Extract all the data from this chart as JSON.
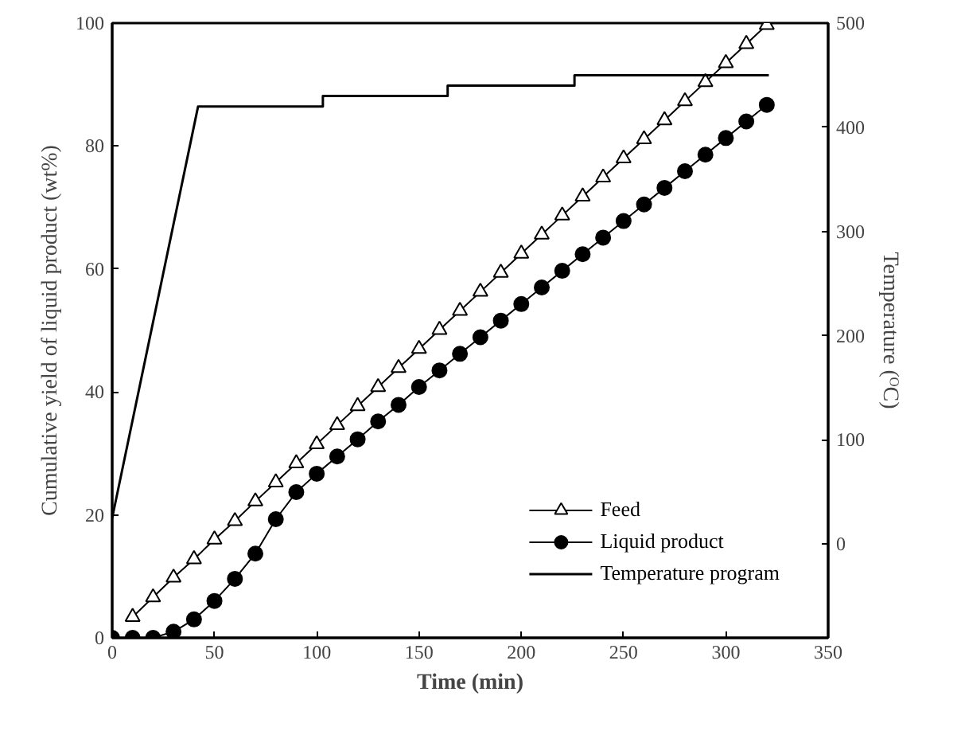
{
  "chart_data": {
    "type": "line",
    "xlabel": "Time (min)",
    "ylabel": "Cumulative yield of liquid product (wt%)",
    "y2label": "Temperature (ᴼC)",
    "xlim": [
      0,
      350
    ],
    "xticks": [
      0,
      50,
      100,
      150,
      200,
      250,
      300,
      350
    ],
    "ylim": [
      0,
      100
    ],
    "yticks": [
      0,
      20,
      40,
      60,
      80,
      100
    ],
    "y2lim": [
      -90,
      500
    ],
    "y2ticks": [
      0,
      100,
      200,
      300,
      400,
      500
    ],
    "grid": false,
    "legend": "bottom right",
    "x": [
      0,
      10,
      20,
      30,
      40,
      50,
      60,
      70,
      80,
      90,
      100,
      110,
      120,
      130,
      140,
      150,
      160,
      170,
      180,
      190,
      200,
      210,
      220,
      230,
      240,
      250,
      260,
      270,
      280,
      290,
      300,
      310,
      320
    ],
    "series": [
      {
        "name": "Feed",
        "color": "#000000",
        "marker": "triangle",
        "values": [
          null,
          3.4,
          6.6,
          9.8,
          12.8,
          16,
          19,
          22.2,
          25.3,
          28.4,
          31.5,
          34.6,
          37.7,
          40.8,
          43.9,
          47,
          50.1,
          53.2,
          56.3,
          59.4,
          62.5,
          65.6,
          68.7,
          71.8,
          74.9,
          78,
          81.1,
          84.2,
          87.3,
          90.4,
          93.5,
          96.6,
          99.7
        ]
      },
      {
        "name": "Liquid product",
        "color": "#000000",
        "marker": "circle",
        "values": [
          0,
          0,
          0,
          1,
          3,
          6,
          9.6,
          13.7,
          19.3,
          23.7,
          26.7,
          29.5,
          32.3,
          35.2,
          37.9,
          40.8,
          43.5,
          46.2,
          48.9,
          51.6,
          54.3,
          57,
          59.7,
          62.4,
          65.1,
          67.8,
          70.5,
          73.2,
          75.9,
          78.6,
          81.3,
          84,
          86.7
        ]
      },
      {
        "name": "Temperature program",
        "color": "#000000",
        "marker": "none",
        "axis": "y2",
        "x": [
          0,
          42,
          103,
          103,
          164,
          164,
          226,
          226,
          321
        ],
        "values": [
          25,
          420,
          420,
          430,
          430,
          440,
          440,
          450,
          450
        ]
      }
    ]
  }
}
